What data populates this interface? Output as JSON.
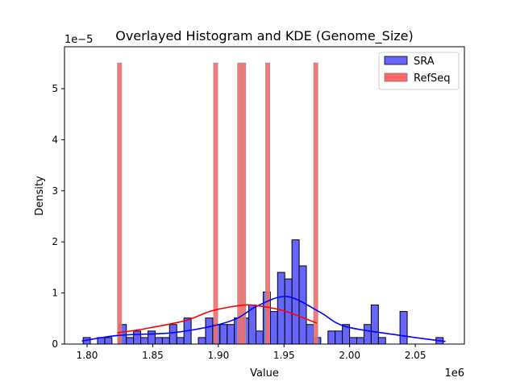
{
  "chart_data": {
    "type": "bar",
    "title": "Overlayed Histogram and KDE (Genome_Size)",
    "xlabel": "Value",
    "ylabel": "Density",
    "x_offset_label": "1e6",
    "y_offset_label": "1e−5",
    "xlim": [
      1.7828,
      2.0874
    ],
    "ylim": [
      0,
      5.82
    ],
    "x_ticks": [
      1.8,
      1.85,
      1.9,
      1.95,
      2.0,
      2.05
    ],
    "x_tick_labels": [
      "1.80",
      "1.85",
      "1.90",
      "1.95",
      "2.00",
      "2.05"
    ],
    "y_ticks": [
      0,
      1,
      2,
      3,
      4,
      5
    ],
    "y_tick_labels": [
      "0",
      "1",
      "2",
      "3",
      "4",
      "5"
    ],
    "grid": false,
    "legend_position": "top-right",
    "series": [
      {
        "name": "SRA",
        "color": "#6666ff",
        "edge_color": "#000000",
        "kde_color": "#0000ff",
        "bin_start": 1.797,
        "bin_width": 0.005485,
        "density_unit": 0.1275,
        "counts": [
          1,
          0,
          1,
          1,
          0,
          3,
          1,
          2,
          1,
          2,
          1,
          1,
          3,
          1,
          4,
          0,
          1,
          4,
          3,
          3,
          3,
          4,
          4,
          6,
          2,
          8,
          5,
          11,
          10,
          16,
          12,
          3,
          1,
          0,
          2,
          2,
          3,
          1,
          1,
          3,
          6,
          1,
          0,
          0,
          5,
          0,
          0,
          0,
          0,
          1
        ],
        "kde": [
          [
            1.796,
            0.06
          ],
          [
            1.824,
            0.17
          ],
          [
            1.8645,
            0.22
          ],
          [
            1.895,
            0.35
          ],
          [
            1.914,
            0.5
          ],
          [
            1.93,
            0.75
          ],
          [
            1.9523,
            0.93
          ],
          [
            1.977,
            0.63
          ],
          [
            1.996,
            0.35
          ],
          [
            2.033,
            0.19
          ],
          [
            2.073,
            0.05
          ]
        ]
      },
      {
        "name": "RefSeq",
        "color": "#ff6666",
        "edge_color": "#999999",
        "kde_color": "#ff0000",
        "bin_start": 1.8232,
        "bin_width": 0.00305,
        "bars": [
          [
            0,
            5.5
          ],
          [
            24,
            5.5
          ],
          [
            30,
            5.5
          ],
          [
            31,
            5.5
          ],
          [
            37,
            5.5
          ],
          [
            49,
            5.5
          ]
        ],
        "kde": [
          [
            1.823,
            0.22
          ],
          [
            1.844,
            0.3
          ],
          [
            1.875,
            0.46
          ],
          [
            1.895,
            0.65
          ],
          [
            1.918,
            0.76
          ],
          [
            1.93,
            0.75
          ],
          [
            1.95,
            0.65
          ],
          [
            1.975,
            0.41
          ]
        ]
      }
    ]
  }
}
